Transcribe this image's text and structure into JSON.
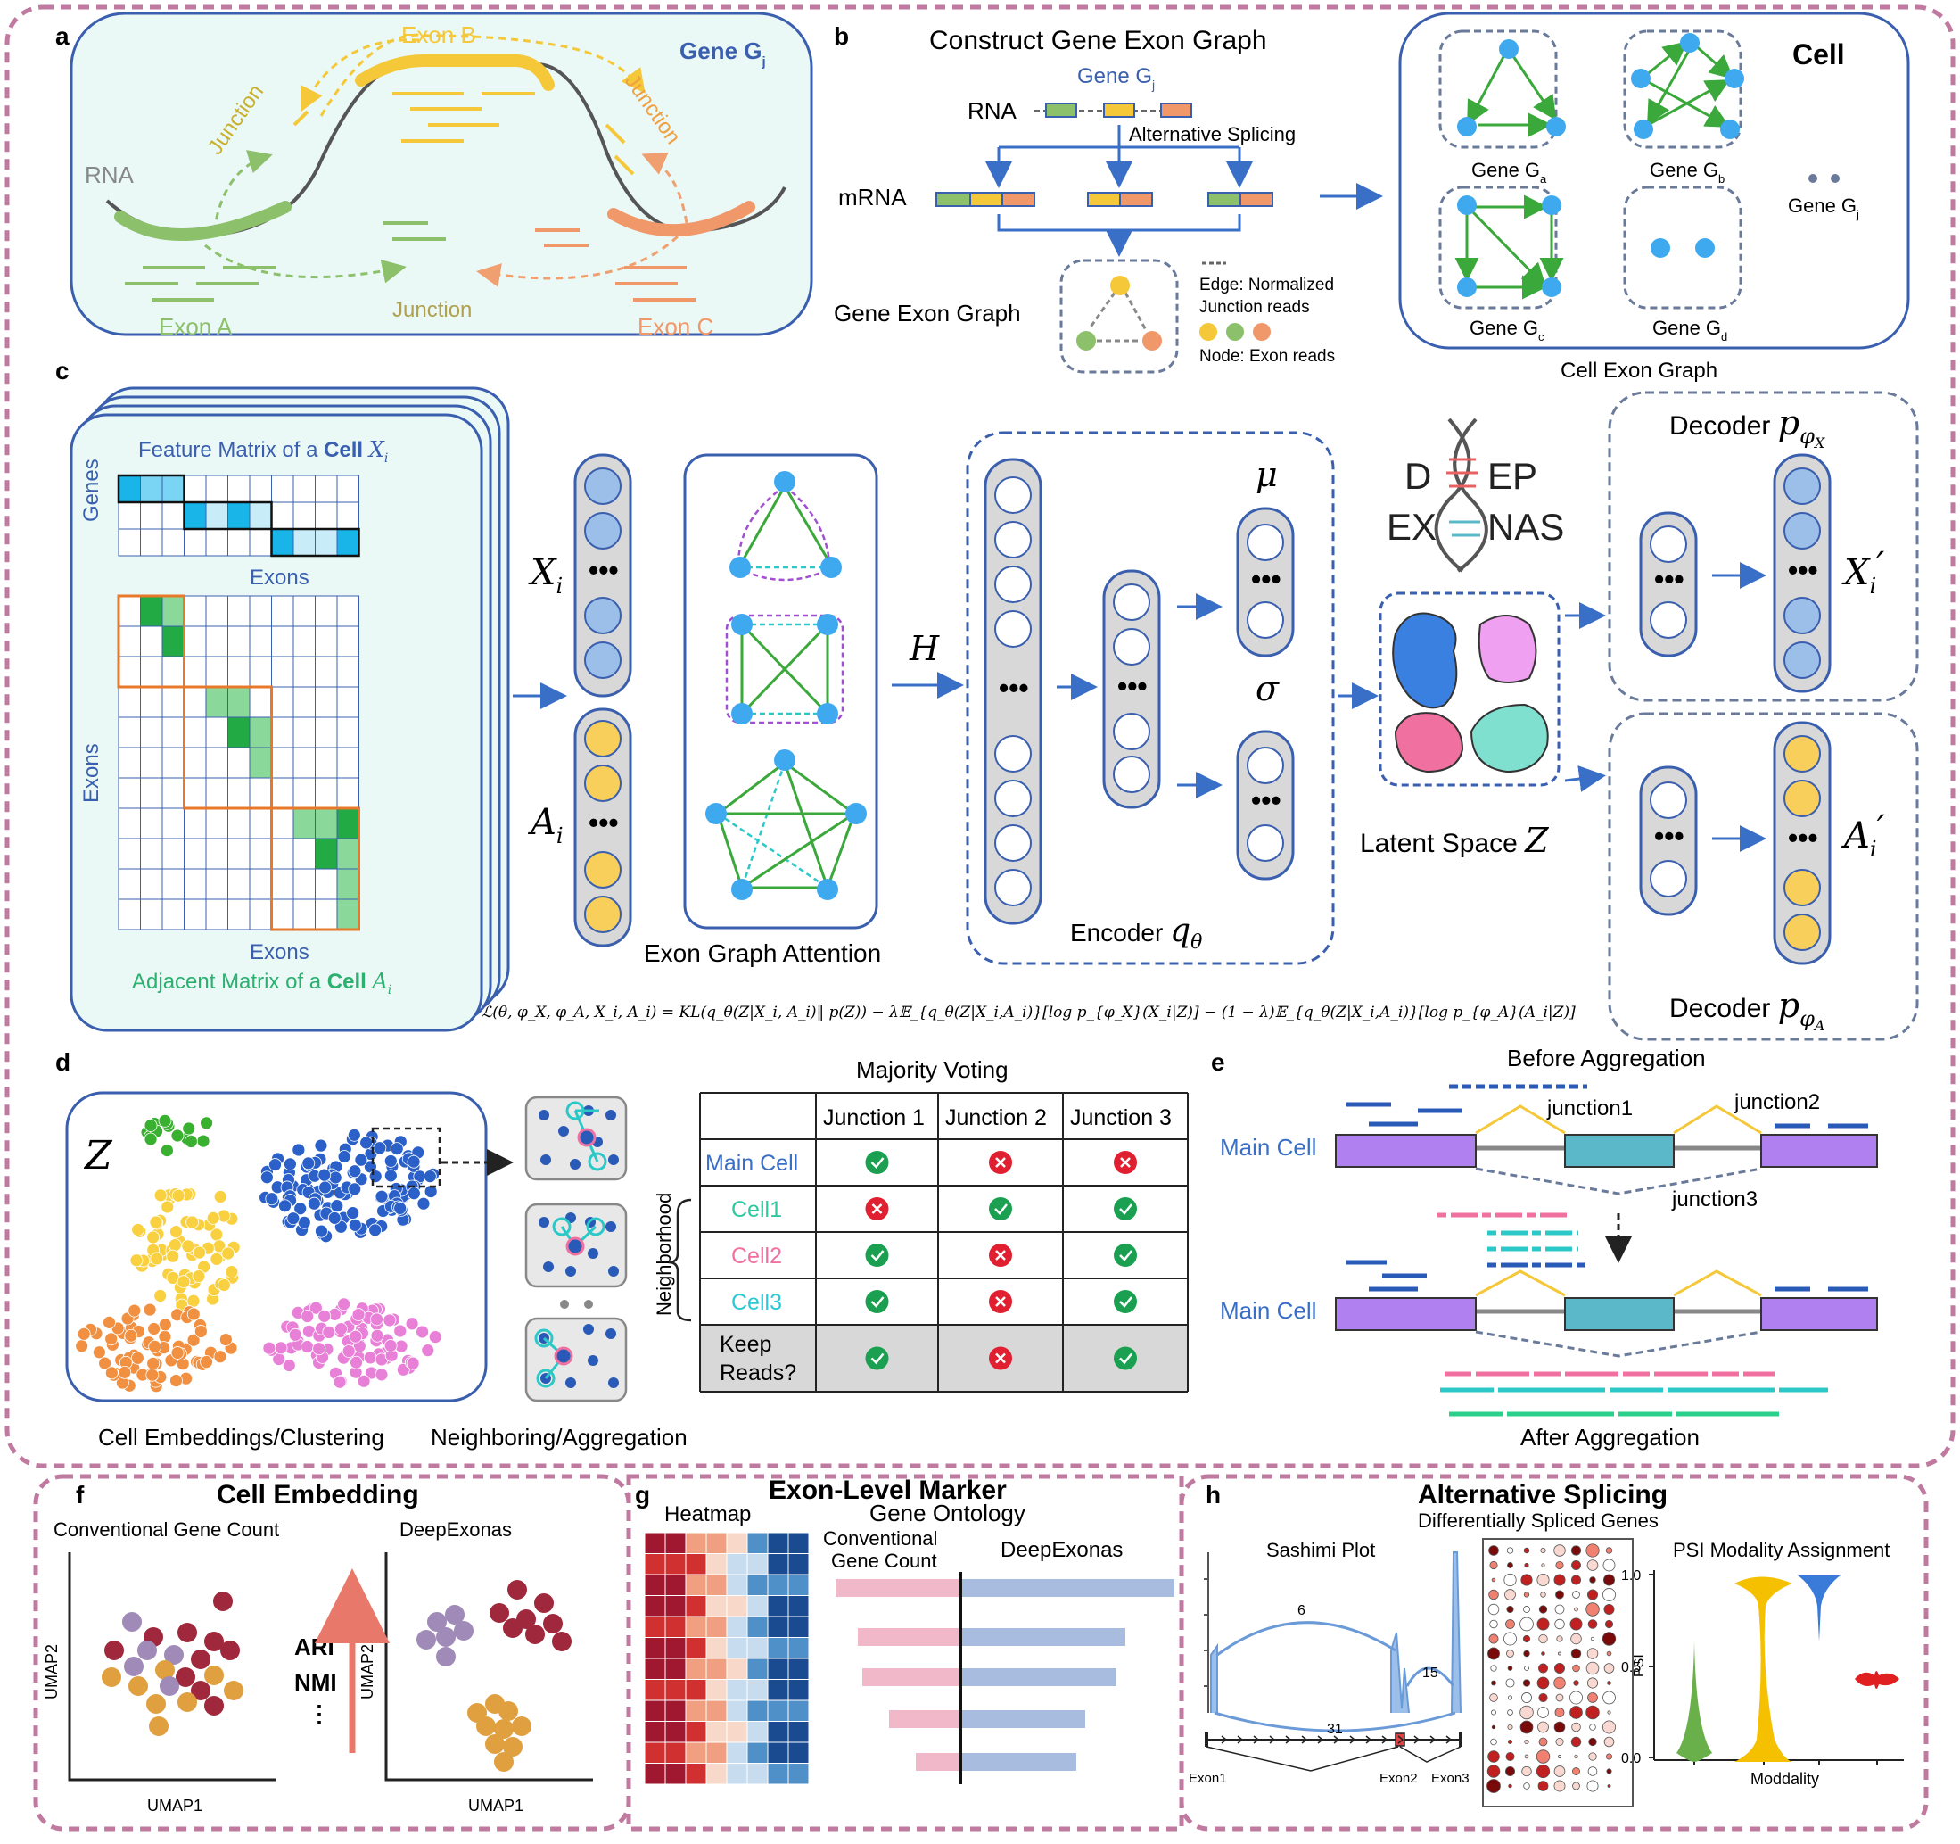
{
  "colors": {
    "frame": "#c07aa0",
    "panel_border": "#3a5fae",
    "panel_fill": "#eaf8f6",
    "exon_a": "#8cc06a",
    "exon_b": "#f5c83a",
    "exon_c": "#f0986a",
    "node_blue": "#3fa9f0",
    "edge_green": "#3aa83a",
    "arrow_blue": "#3a6fc8",
    "purple_exon": "#b07ff0",
    "teal_exon": "#5ab8c8"
  },
  "panel_a": {
    "letter": "a",
    "gene": "Gene G",
    "gene_sub": "j",
    "rna": "RNA",
    "exon_a": "Exon A",
    "exon_b": "Exon B",
    "exon_c": "Exon C",
    "junction": "Junction"
  },
  "panel_b": {
    "letter": "b",
    "title": "Construct Gene Exon Graph",
    "gene": "Gene G",
    "gene_sub": "j",
    "rna": "RNA",
    "alt_splicing": "Alternative Splicing",
    "mrna": "mRNA",
    "graph_label": "Gene Exon Graph",
    "edge_legend": [
      "Edge: Normalized",
      "Junction reads"
    ],
    "node_legend": "Node: Exon reads",
    "cell": "Cell",
    "cell_graph": "Cell Exon Graph",
    "genes": [
      {
        "name": "Gene G",
        "sub": "a"
      },
      {
        "name": "Gene G",
        "sub": "b"
      },
      {
        "name": "Gene G",
        "sub": "c"
      },
      {
        "name": "Gene G",
        "sub": "d"
      },
      {
        "name": "Gene G",
        "sub": "j"
      }
    ]
  },
  "panel_c": {
    "letter": "c",
    "feature_title": "Feature Matrix of a ",
    "feature_cell": "Cell",
    "feature_sym": "X",
    "sym_i": "i",
    "genes_axis": "Genes",
    "exons_axis": "Exons",
    "adj_title": "Adjacent Matrix of a ",
    "adj_cell": "Cell",
    "adj_sym": "A",
    "xi": "X",
    "ai": "A",
    "h": "H",
    "gat": "Exon Graph Attention",
    "encoder": "Encoder ",
    "q": "q",
    "theta": "θ",
    "mu": "μ",
    "sigma": "σ",
    "logo": [
      "D",
      "EP",
      "EX",
      "NAS"
    ],
    "latent": "Latent Space ",
    "z": "Z",
    "decoder": "Decoder ",
    "p": "p",
    "phi_x": "φ",
    "phi_sub_x": "X",
    "phi_sub_a": "A",
    "xi_prime": "X",
    "ai_prime": "A",
    "prime": "′",
    "loss": "ℒ(θ, φ_X, φ_A, X_i, A_i) = KL(q_θ(Z|X_i, A_i)‖ p(Z)) − λ𝔼_{q_θ(Z|X_i,A_i)}[log p_{φ_X}(X_i|Z)] − (1 − λ)𝔼_{q_θ(Z|X_i,A_i)}[log p_{φ_A}(A_i|Z)]"
  },
  "panel_d": {
    "letter": "d",
    "z": "Z",
    "title": "Majority Voting",
    "columns": [
      "Junction 1",
      "Junction 2",
      "Junction 3"
    ],
    "rows": [
      {
        "label": "Main Cell",
        "vals": [
          true,
          false,
          false
        ]
      },
      {
        "label": "Cell1",
        "vals": [
          false,
          true,
          true
        ]
      },
      {
        "label": "Cell2",
        "vals": [
          true,
          false,
          true
        ]
      },
      {
        "label": "Cell3",
        "vals": [
          true,
          false,
          true
        ]
      }
    ],
    "keep": [
      "Keep",
      "Reads?"
    ],
    "keep_vals": [
      true,
      false,
      true
    ],
    "neighborhood": "Neighborhood",
    "caption_left": "Cell Embeddings/Clustering",
    "caption_right": "Neighboring/Aggregation"
  },
  "panel_e": {
    "letter": "e",
    "before": "Before Aggregation",
    "after": "After Aggregation",
    "main_cell": "Main Cell",
    "junction1": "junction1",
    "junction2": "junction2",
    "junction3": "junction3"
  },
  "panel_f": {
    "letter": "f",
    "title": "Cell Embedding",
    "left": "Conventional Gene Count",
    "right": "DeepExonas",
    "xaxis": "UMAP1",
    "yaxis": "UMAP2",
    "metrics": [
      "ARI",
      "NMI",
      "⋮"
    ]
  },
  "panel_g": {
    "letter": "g",
    "title": "Exon-Level Marker",
    "heatmap": "Heatmap",
    "go": "Gene Ontology",
    "conventional": [
      "Conventional",
      "Gene Count"
    ],
    "deep": "DeepExonas"
  },
  "panel_h": {
    "letter": "h",
    "title": "Alternative Splicing",
    "subtitle": "Differentially Spliced Genes",
    "sashimi": "Sashimi Plot",
    "psi_title": "PSI Modality Assignment",
    "psi": "PSI",
    "modality": "Moddality",
    "counts": [
      "6",
      "15",
      "31"
    ],
    "exons": [
      "Exon1",
      "Exon2",
      "Exon3"
    ],
    "yticks": [
      "1.0",
      "0.5",
      "0.0"
    ]
  }
}
